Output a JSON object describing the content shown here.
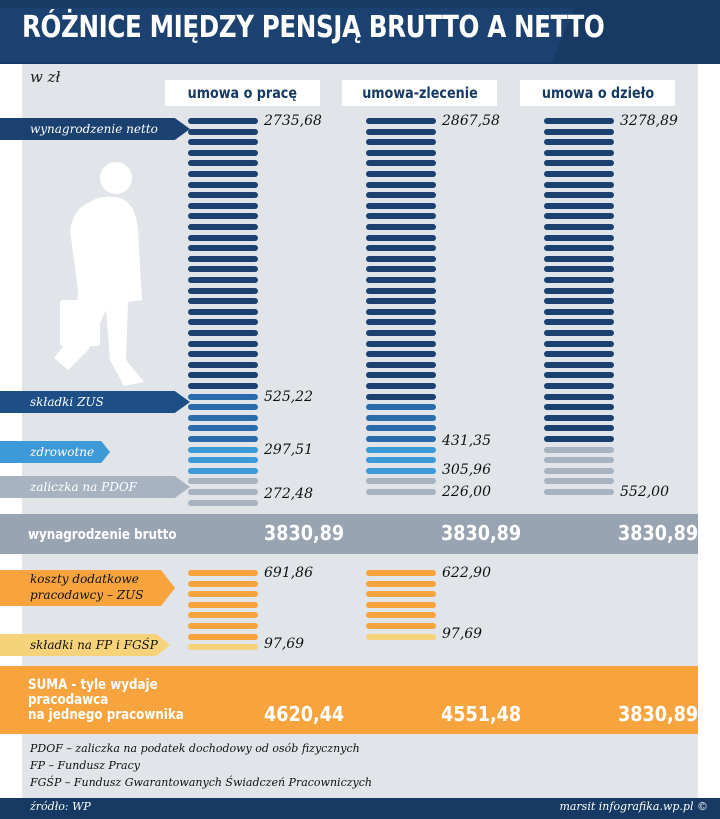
{
  "title": "RÓŻNICE MIĘDZY PENSJĄ BRUTTO A NETTO",
  "unit": "w zł",
  "colors": {
    "navy": "#1a4170",
    "zus": "#2a6cab",
    "health": "#3d9ad8",
    "tax": "#a7b3c0",
    "employer_zus": "#f7a43f",
    "fp_fgsp": "#f6d27a"
  },
  "chart_data": {
    "type": "stacked-bar",
    "title": "RÓŻNICE MIĘDZY PENSJĄ BRUTTO A NETTO",
    "unit": "w zł",
    "categories": [
      "umowa o pracę",
      "umowa-zlecenie",
      "umowa o dzieło"
    ],
    "series": [
      {
        "key": "netto",
        "name": "wynagrodzenie netto",
        "color": "#1a4170",
        "values": [
          2735.68,
          2867.58,
          3278.89
        ],
        "labels": [
          "2735,68",
          "2867,58",
          "3278,89"
        ]
      },
      {
        "key": "zus",
        "name": "składki ZUS",
        "color": "#2a6cab",
        "values": [
          525.22,
          431.35,
          null
        ],
        "labels": [
          "525,22",
          "431,35",
          null
        ]
      },
      {
        "key": "zdrowotne",
        "name": "zdrowotne",
        "color": "#3d9ad8",
        "values": [
          297.51,
          305.96,
          null
        ],
        "labels": [
          "297,51",
          "305,96",
          null
        ]
      },
      {
        "key": "pdof",
        "name": "zaliczka na PDOF",
        "color": "#a7b3c0",
        "values": [
          272.48,
          226.0,
          552.0
        ],
        "labels": [
          "272,48",
          "226,00",
          "552,00"
        ]
      },
      {
        "key": "koszty",
        "name": "koszty dodatkowe pracodawcy – ZUS",
        "color": "#f7a43f",
        "values": [
          691.86,
          622.9,
          null
        ],
        "labels": [
          "691,86",
          "622,90",
          null
        ]
      },
      {
        "key": "fp",
        "name": "składki na FP i FGŚP",
        "color": "#f6d27a",
        "values": [
          97.69,
          97.69,
          null
        ],
        "labels": [
          "97,69",
          "97,69",
          null
        ]
      }
    ],
    "brutto": {
      "label": "wynagrodzenie brutto",
      "values": [
        3830.89,
        3830.89,
        3830.89
      ],
      "labels": [
        "3830,89",
        "3830,89",
        "3830,89"
      ]
    },
    "suma": {
      "label_lines": [
        "SUMA - tyle wydaje",
        "pracodawca",
        "na jednego pracownika"
      ],
      "values": [
        4620.44,
        4551.48,
        3830.89
      ],
      "labels": [
        "4620,44",
        "4551,48",
        "3830,89"
      ]
    }
  },
  "tags": {
    "netto": "wynagrodzenie netto",
    "zus": "składki ZUS",
    "zdrowotne": "zdrowotne",
    "pdof": "zaliczka na PDOF",
    "koszty_line1": "koszty dodatkowe",
    "koszty_line2": "pracodawcy – ZUS",
    "fp": "składki na FP i FGŚP"
  },
  "footnotes": [
    "PDOF – zaliczka na podatek dochodowy od osób fizycznych",
    "FP – Fundusz Pracy",
    "FGŚP – Fundusz Gwarantowanych Świadczeń Pracowniczych"
  ],
  "source": "źródło: WP",
  "credit": "marsit infografika.wp.pl ©"
}
